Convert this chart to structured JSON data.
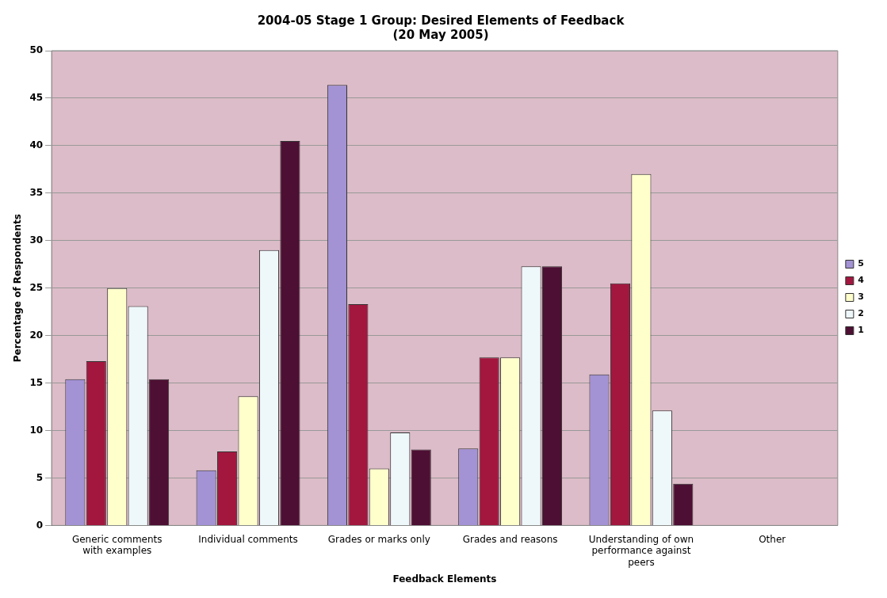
{
  "chart_data": {
    "type": "bar",
    "title": "2004-05 Stage 1 Group: Desired Elements of Feedback\n(20 May 2005)",
    "xlabel": "Feedback Elements",
    "ylabel": "Percentage of Respondents",
    "categories": [
      "Generic comments with examples",
      "Individual comments",
      "Grades or marks only",
      "Grades and reasons",
      "Understanding of own performance against peers",
      "Other"
    ],
    "series": [
      {
        "name": "5",
        "color": "#a392d4",
        "values": [
          15.4,
          5.8,
          46.4,
          8.1,
          15.9,
          0
        ]
      },
      {
        "name": "4",
        "color": "#a3173f",
        "values": [
          17.3,
          7.8,
          23.3,
          17.7,
          25.5,
          0
        ]
      },
      {
        "name": "3",
        "color": "#ffffcc",
        "values": [
          25,
          13.6,
          6,
          17.7,
          37,
          0
        ]
      },
      {
        "name": "2",
        "color": "#eef8fb",
        "values": [
          23.1,
          29,
          9.8,
          27.3,
          12.1,
          0
        ]
      },
      {
        "name": "1",
        "color": "#4d0f33",
        "values": [
          15.4,
          40.5,
          8,
          27.3,
          4.4,
          0
        ]
      }
    ],
    "ylim": [
      0,
      50
    ],
    "yticks": [
      0,
      5,
      10,
      15,
      20,
      25,
      30,
      35,
      40,
      45,
      50
    ],
    "grid": "y",
    "legend": "right"
  }
}
